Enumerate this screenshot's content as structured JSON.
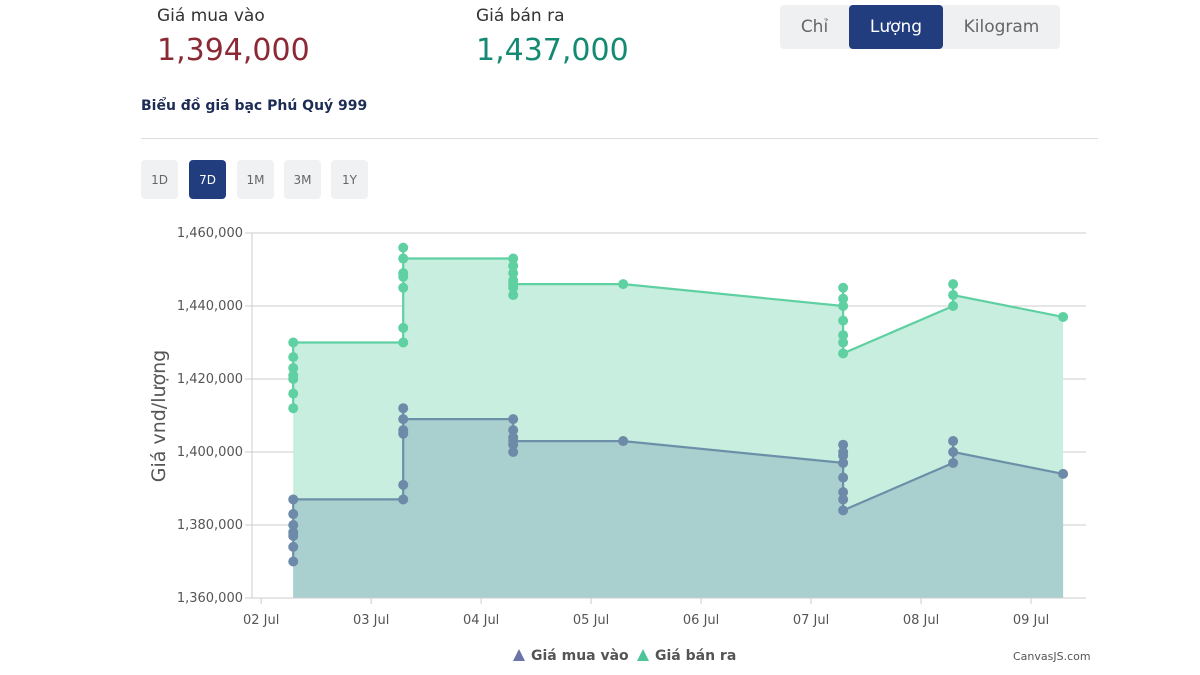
{
  "summary": {
    "buy_label": "Giá mua vào",
    "buy_value": "1,394,000",
    "sell_label": "Giá bán ra",
    "sell_value": "1,437,000"
  },
  "unit_tabs": [
    {
      "label": "Chỉ",
      "active": false
    },
    {
      "label": "Lượng",
      "active": true
    },
    {
      "label": "Kilogram",
      "active": false
    }
  ],
  "chart_title": "Biểu đồ giá bạc Phú Quý 999",
  "range_tabs": [
    {
      "label": "1D",
      "active": false
    },
    {
      "label": "7D",
      "active": true
    },
    {
      "label": "1M",
      "active": false
    },
    {
      "label": "3M",
      "active": false
    },
    {
      "label": "1Y",
      "active": false
    }
  ],
  "credit": "CanvasJS.com",
  "colors": {
    "buy_line": "#6b90a8",
    "buy_marker": "#6e8aa9",
    "buy_fill": "#a9d0cf",
    "sell_line": "#5fd0a2",
    "sell_fill": "#c7eede",
    "legend_buy": "#6a74a8",
    "legend_sell": "#4cc599",
    "grid": "#cccccc"
  },
  "chart_data": {
    "type": "area",
    "title": "Biểu đồ giá bạc Phú Quý 999",
    "xlabel": "",
    "ylabel": "Giá vnd/lượng",
    "ylim": [
      1360000,
      1460000
    ],
    "y_ticks": [
      1360000,
      1380000,
      1400000,
      1420000,
      1440000,
      1460000
    ],
    "y_tick_labels": [
      "1,360,000",
      "1,380,000",
      "1,400,000",
      "1,420,000",
      "1,440,000",
      "1,460,000"
    ],
    "x_range": [
      "2025-07-01T22:00",
      "2025-07-09T12:00"
    ],
    "x_ticks": [
      "2025-07-02",
      "2025-07-03",
      "2025-07-04",
      "2025-07-05",
      "2025-07-06",
      "2025-07-07",
      "2025-07-08",
      "2025-07-09"
    ],
    "x_tick_labels": [
      "02 Jul",
      "03 Jul",
      "04 Jul",
      "05 Jul",
      "06 Jul",
      "07 Jul",
      "08 Jul",
      "09 Jul"
    ],
    "grid": true,
    "legend_position": "bottom-center",
    "series": [
      {
        "name": "Giá mua vào",
        "points": [
          [
            "2025-07-02T07:00",
            1370000
          ],
          [
            "2025-07-02T07:00",
            1374000
          ],
          [
            "2025-07-02T07:00",
            1377000
          ],
          [
            "2025-07-02T07:00",
            1378000
          ],
          [
            "2025-07-02T07:00",
            1380000
          ],
          [
            "2025-07-02T07:00",
            1383000
          ],
          [
            "2025-07-02T07:00",
            1387000
          ],
          [
            "2025-07-03T07:00",
            1387000
          ],
          [
            "2025-07-03T07:00",
            1391000
          ],
          [
            "2025-07-03T07:00",
            1405000
          ],
          [
            "2025-07-03T07:00",
            1406000
          ],
          [
            "2025-07-03T07:00",
            1412000
          ],
          [
            "2025-07-03T07:00",
            1409000
          ],
          [
            "2025-07-04T07:00",
            1409000
          ],
          [
            "2025-07-04T07:00",
            1400000
          ],
          [
            "2025-07-04T07:00",
            1402000
          ],
          [
            "2025-07-04T07:00",
            1404000
          ],
          [
            "2025-07-04T07:00",
            1406000
          ],
          [
            "2025-07-04T07:00",
            1403000
          ],
          [
            "2025-07-05T07:00",
            1403000
          ],
          [
            "2025-07-07T07:00",
            1397000
          ],
          [
            "2025-07-07T07:00",
            1399000
          ],
          [
            "2025-07-07T07:00",
            1400000
          ],
          [
            "2025-07-07T07:00",
            1402000
          ],
          [
            "2025-07-07T07:00",
            1393000
          ],
          [
            "2025-07-07T07:00",
            1389000
          ],
          [
            "2025-07-07T07:00",
            1387000
          ],
          [
            "2025-07-07T07:00",
            1384000
          ],
          [
            "2025-07-08T07:00",
            1397000
          ],
          [
            "2025-07-08T07:00",
            1403000
          ],
          [
            "2025-07-08T07:00",
            1400000
          ],
          [
            "2025-07-09T07:00",
            1394000
          ]
        ]
      },
      {
        "name": "Giá bán ra",
        "points": [
          [
            "2025-07-02T07:00",
            1412000
          ],
          [
            "2025-07-02T07:00",
            1416000
          ],
          [
            "2025-07-02T07:00",
            1420000
          ],
          [
            "2025-07-02T07:00",
            1421000
          ],
          [
            "2025-07-02T07:00",
            1423000
          ],
          [
            "2025-07-02T07:00",
            1426000
          ],
          [
            "2025-07-02T07:00",
            1430000
          ],
          [
            "2025-07-03T07:00",
            1430000
          ],
          [
            "2025-07-03T07:00",
            1434000
          ],
          [
            "2025-07-03T07:00",
            1445000
          ],
          [
            "2025-07-03T07:00",
            1448000
          ],
          [
            "2025-07-03T07:00",
            1449000
          ],
          [
            "2025-07-03T07:00",
            1456000
          ],
          [
            "2025-07-03T07:00",
            1453000
          ],
          [
            "2025-07-04T07:00",
            1453000
          ],
          [
            "2025-07-04T07:00",
            1443000
          ],
          [
            "2025-07-04T07:00",
            1445000
          ],
          [
            "2025-07-04T07:00",
            1447000
          ],
          [
            "2025-07-04T07:00",
            1449000
          ],
          [
            "2025-07-04T07:00",
            1451000
          ],
          [
            "2025-07-04T07:00",
            1446000
          ],
          [
            "2025-07-05T07:00",
            1446000
          ],
          [
            "2025-07-07T07:00",
            1440000
          ],
          [
            "2025-07-07T07:00",
            1442000
          ],
          [
            "2025-07-07T07:00",
            1445000
          ],
          [
            "2025-07-07T07:00",
            1436000
          ],
          [
            "2025-07-07T07:00",
            1432000
          ],
          [
            "2025-07-07T07:00",
            1430000
          ],
          [
            "2025-07-07T07:00",
            1427000
          ],
          [
            "2025-07-08T07:00",
            1440000
          ],
          [
            "2025-07-08T07:00",
            1446000
          ],
          [
            "2025-07-08T07:00",
            1443000
          ],
          [
            "2025-07-09T07:00",
            1437000
          ]
        ]
      }
    ]
  }
}
